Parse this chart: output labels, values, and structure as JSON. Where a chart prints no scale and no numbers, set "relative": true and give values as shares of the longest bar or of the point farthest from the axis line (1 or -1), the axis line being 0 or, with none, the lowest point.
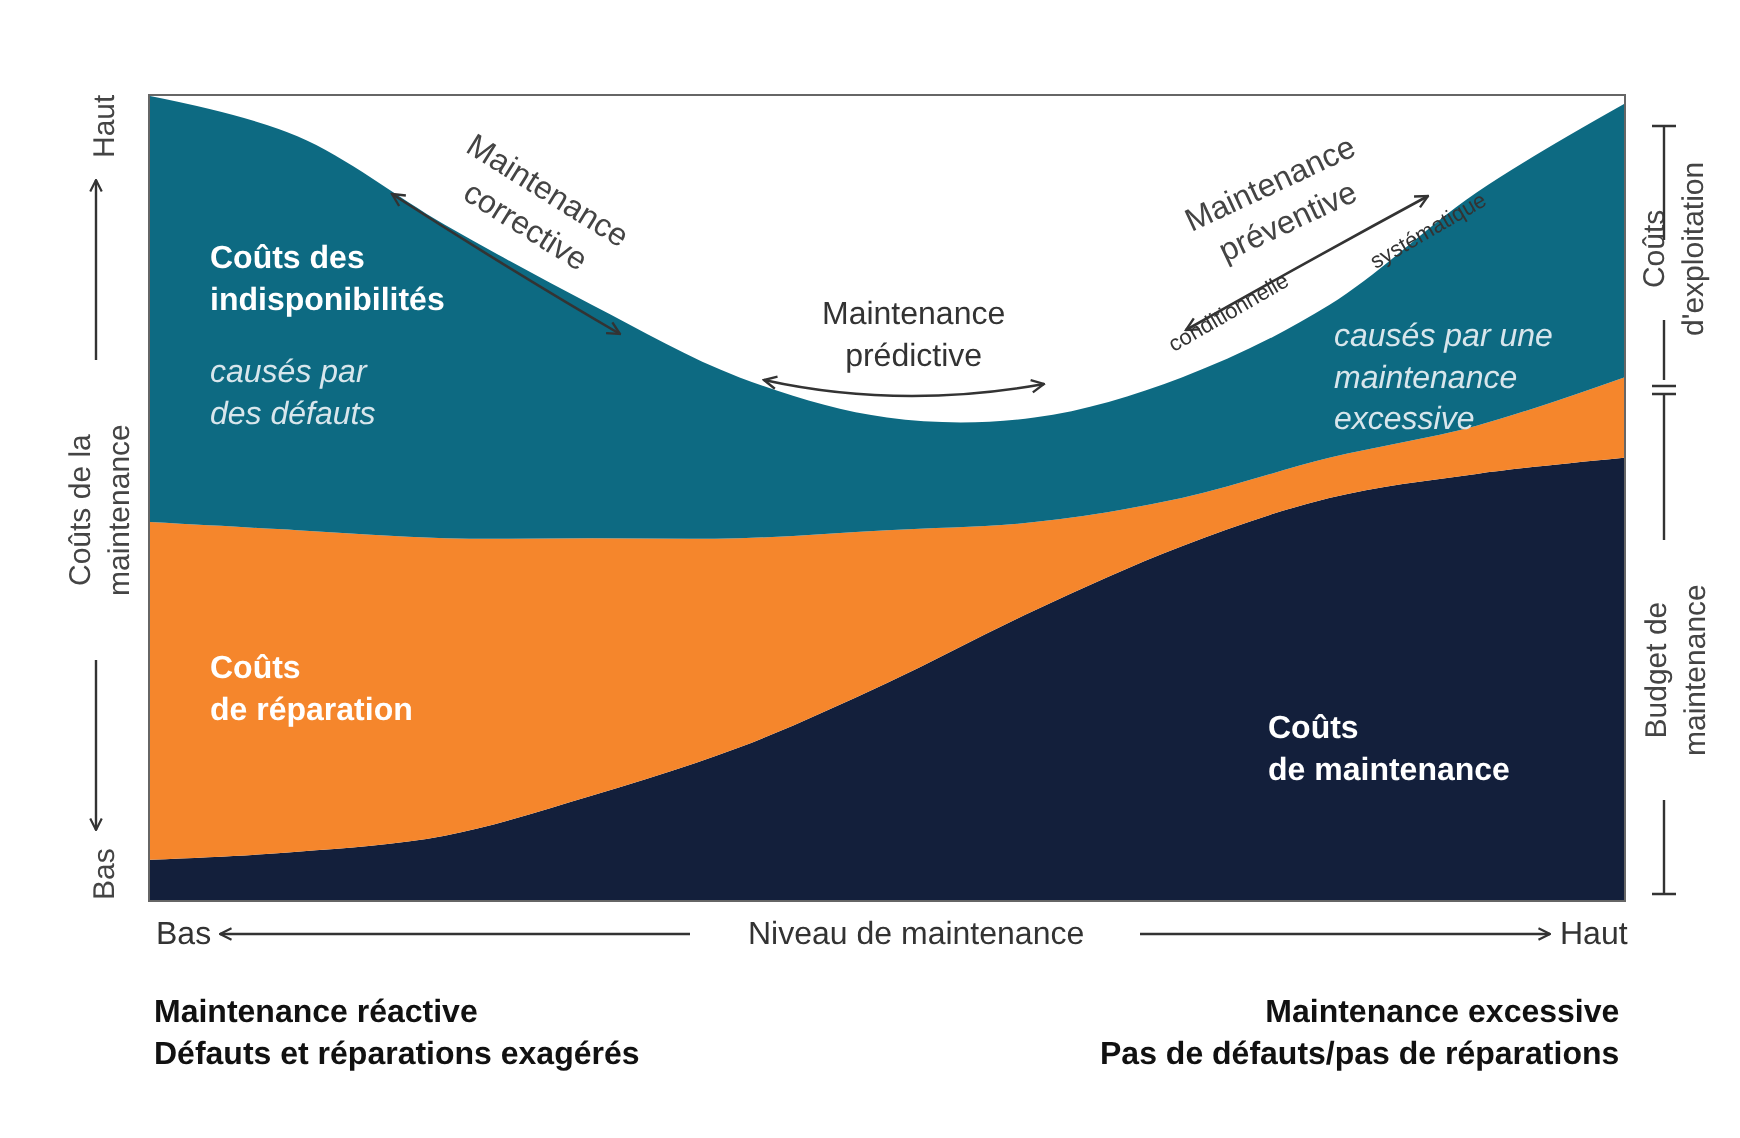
{
  "chart_data": {
    "type": "area",
    "stacked": true,
    "relative": true,
    "legend": false,
    "grid": false,
    "xlabel": "Niveau de maintenance",
    "ylabel": "Coûts de la\nmaintenance",
    "categories": [
      null,
      null,
      null,
      null,
      null,
      null,
      null,
      null,
      null,
      null,
      null
    ],
    "series": [
      {
        "name": "Coûts\nde maintenance",
        "color": "#131f3b",
        "values": [
          0.05,
          0.06,
          0.08,
          0.13,
          0.19,
          0.27,
          0.36,
          0.44,
          0.5,
          0.53,
          0.55
        ]
      },
      {
        "name": "Coûts\nde réparation",
        "color": "#f5862c",
        "values": [
          0.42,
          0.4,
          0.37,
          0.32,
          0.26,
          0.19,
          0.11,
          0.06,
          0.05,
          0.06,
          0.1
        ]
      },
      {
        "name": "Coûts des\nindisponibilités",
        "color": "#0d6a82",
        "values": [
          0.53,
          0.49,
          0.39,
          0.29,
          0.2,
          0.14,
          0.13,
          0.15,
          0.19,
          0.29,
          0.34
        ]
      }
    ],
    "annotations": [
      "causés par\ndes défauts",
      "causés par une\nmaintenance\nexcessive",
      "Maintenance\ncorrective",
      "Maintenance\nprédictive",
      "Maintenance\npréventive",
      "systématique",
      "conditionnelle",
      "Bas",
      "Haut",
      "Bas",
      "Haut",
      "Coûts\nd'exploitation",
      "Budget de\nmaintenance",
      "Maintenance réactive\nDéfauts et réparations exagérés",
      "Maintenance excessive\nPas de défauts/pas de réparations"
    ]
  }
}
